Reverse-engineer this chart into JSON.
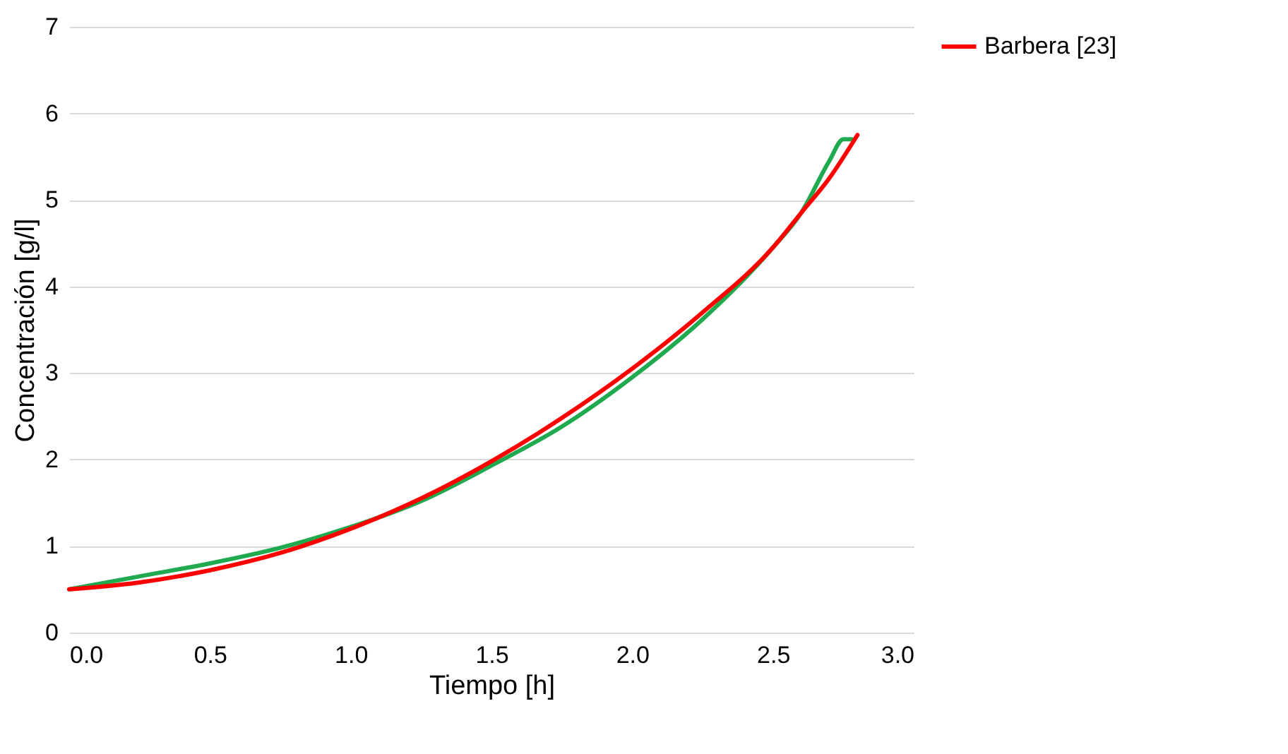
{
  "chart_data": {
    "type": "line",
    "xlabel": "Tiempo [h]",
    "ylabel": "Concentración [g/l]",
    "xlim": [
      0,
      3
    ],
    "xticks": [
      {
        "value": 0,
        "label": "0.0"
      },
      {
        "value": 0.5,
        "label": "0.5"
      },
      {
        "value": 1,
        "label": "1.0"
      },
      {
        "value": 1.5,
        "label": "1.5"
      },
      {
        "value": 2,
        "label": "2.0"
      },
      {
        "value": 2.5,
        "label": "2.5"
      },
      {
        "value": 3,
        "label": "3.0"
      }
    ],
    "ylim": [
      0,
      7
    ],
    "yticks": [
      0,
      1,
      2,
      3,
      4,
      5,
      6,
      7
    ],
    "grid": "y",
    "legend": "right",
    "line_style": "solid",
    "marker": "none",
    "series": [
      {
        "color": "#1faa4f",
        "x": [
          0,
          0.25,
          0.5,
          0.75,
          1,
          1.25,
          1.5,
          1.75,
          2,
          2.25,
          2.5,
          2.6,
          2.7,
          2.75,
          2.78
        ],
        "values": [
          0.5,
          0.65,
          0.8,
          0.98,
          1.22,
          1.52,
          1.93,
          2.38,
          2.95,
          3.62,
          4.45,
          4.85,
          5.45,
          5.7,
          5.7
        ]
      },
      {
        "name": "Barbera [23]",
        "color": "#ff0000",
        "x": [
          0,
          0.25,
          0.5,
          0.75,
          1,
          1.25,
          1.5,
          1.75,
          2,
          2.25,
          2.5,
          2.6,
          2.7,
          2.8
        ],
        "values": [
          0.5,
          0.58,
          0.72,
          0.92,
          1.2,
          1.55,
          1.98,
          2.48,
          3.05,
          3.7,
          4.45,
          4.85,
          5.25,
          5.75
        ]
      }
    ]
  }
}
